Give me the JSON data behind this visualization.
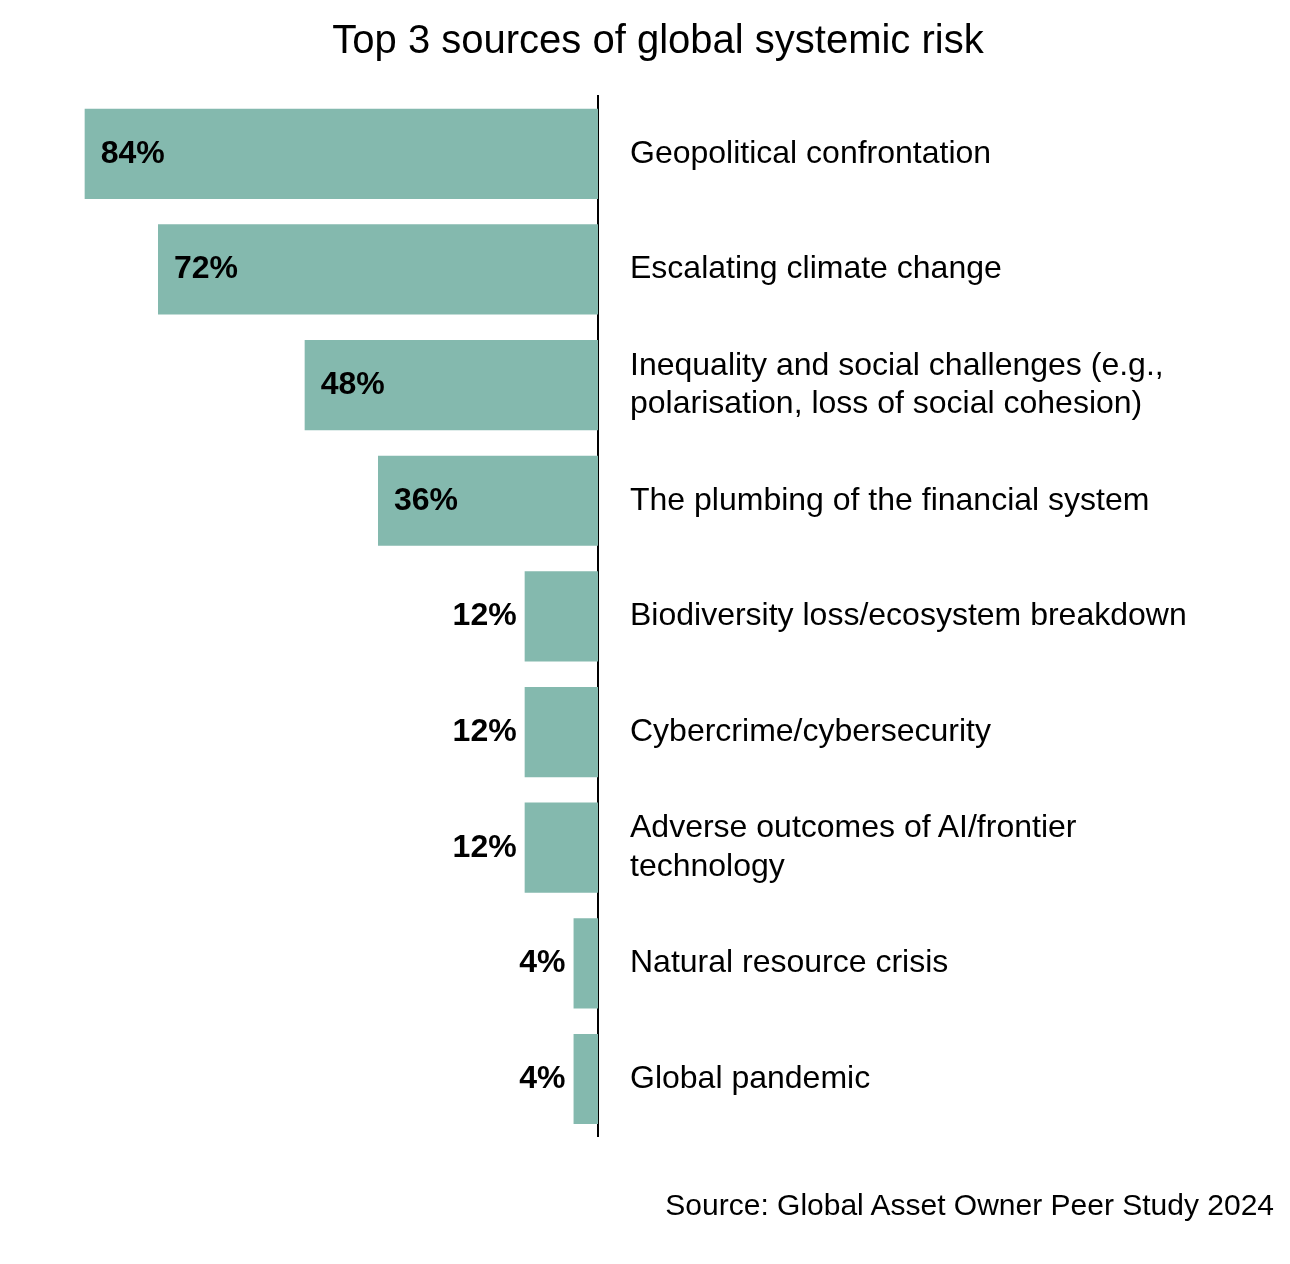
{
  "chart_data": {
    "type": "bar",
    "orientation": "horizontal",
    "title": "Top 3 sources of global systemic risk",
    "categories": [
      "Geopolitical confrontation",
      "Escalating climate change",
      "Inequality and social challenges (e.g., polarisation, loss of social cohesion)",
      "The plumbing of the financial system",
      "Biodiversity loss/ecosystem breakdown",
      "Cybercrime/cybersecurity",
      "Adverse outcomes of AI/frontier technology",
      "Natural resource crisis",
      "Global pandemic"
    ],
    "values": [
      84,
      72,
      48,
      36,
      12,
      12,
      12,
      4,
      4
    ],
    "value_labels": [
      "84%",
      "72%",
      "48%",
      "36%",
      "12%",
      "12%",
      "12%",
      "4%",
      "4%"
    ],
    "color": "#84b9ae",
    "grid": false,
    "legend": false,
    "tick_labels": "y",
    "annotations": [
      "Source: Global Asset Owner Peer Study 2024"
    ]
  }
}
